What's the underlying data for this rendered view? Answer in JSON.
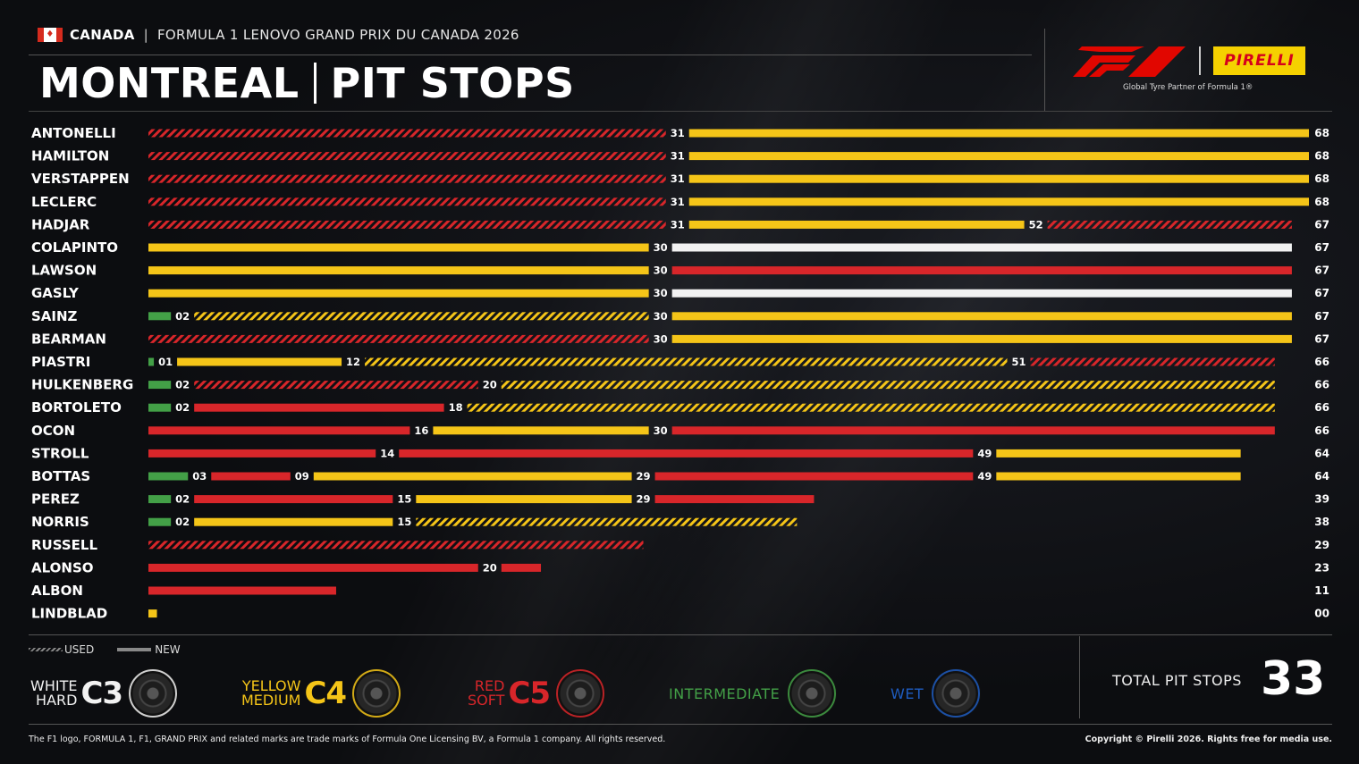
{
  "header": {
    "country": "CANADA",
    "race": "FORMULA 1 LENOVO GRAND PRIX DU CANADA 2026",
    "title_left": "MONTREAL",
    "title_right": "PIT STOPS",
    "pirelli": "PIRELLI",
    "partner": "Global Tyre Partner of Formula 1®"
  },
  "colors": {
    "hard": "#f2f2f2",
    "medium": "#f5c518",
    "soft": "#d8262a",
    "intermediate": "#43a047",
    "wet": "#1e5cbf"
  },
  "chart_data": {
    "type": "bar",
    "xlim": [
      0,
      68
    ],
    "drivers": [
      {
        "name": "ANTONELLI",
        "total": "68",
        "stints": [
          {
            "c": "soft",
            "u": true,
            "s": 0,
            "e": 31
          },
          {
            "c": "medium",
            "u": false,
            "s": 31,
            "e": 68
          }
        ],
        "labels": [
          "31"
        ]
      },
      {
        "name": "HAMILTON",
        "total": "68",
        "stints": [
          {
            "c": "soft",
            "u": true,
            "s": 0,
            "e": 31
          },
          {
            "c": "medium",
            "u": false,
            "s": 31,
            "e": 68
          }
        ],
        "labels": [
          "31"
        ]
      },
      {
        "name": "VERSTAPPEN",
        "total": "68",
        "stints": [
          {
            "c": "soft",
            "u": true,
            "s": 0,
            "e": 31
          },
          {
            "c": "medium",
            "u": false,
            "s": 31,
            "e": 68
          }
        ],
        "labels": [
          "31"
        ]
      },
      {
        "name": "LECLERC",
        "total": "68",
        "stints": [
          {
            "c": "soft",
            "u": true,
            "s": 0,
            "e": 31
          },
          {
            "c": "medium",
            "u": false,
            "s": 31,
            "e": 68
          }
        ],
        "labels": [
          "31"
        ]
      },
      {
        "name": "HADJAR",
        "total": "67",
        "stints": [
          {
            "c": "soft",
            "u": true,
            "s": 0,
            "e": 31
          },
          {
            "c": "medium",
            "u": false,
            "s": 31,
            "e": 52
          },
          {
            "c": "soft",
            "u": true,
            "s": 52,
            "e": 67
          }
        ],
        "labels": [
          "31",
          "52"
        ]
      },
      {
        "name": "COLAPINTO",
        "total": "67",
        "stints": [
          {
            "c": "medium",
            "u": false,
            "s": 0,
            "e": 30
          },
          {
            "c": "hard",
            "u": false,
            "s": 30,
            "e": 67
          }
        ],
        "labels": [
          "30"
        ]
      },
      {
        "name": "LAWSON",
        "total": "67",
        "stints": [
          {
            "c": "medium",
            "u": false,
            "s": 0,
            "e": 30
          },
          {
            "c": "soft",
            "u": false,
            "s": 30,
            "e": 67
          }
        ],
        "labels": [
          "30"
        ]
      },
      {
        "name": "GASLY",
        "total": "67",
        "stints": [
          {
            "c": "medium",
            "u": false,
            "s": 0,
            "e": 30
          },
          {
            "c": "hard",
            "u": false,
            "s": 30,
            "e": 67
          }
        ],
        "labels": [
          "30"
        ]
      },
      {
        "name": "SAINZ",
        "total": "67",
        "stints": [
          {
            "c": "intermediate",
            "u": false,
            "s": 0,
            "e": 2
          },
          {
            "c": "medium",
            "u": true,
            "s": 2,
            "e": 30
          },
          {
            "c": "medium",
            "u": false,
            "s": 30,
            "e": 67
          }
        ],
        "labels": [
          "02",
          "30"
        ]
      },
      {
        "name": "BEARMAN",
        "total": "67",
        "stints": [
          {
            "c": "soft",
            "u": true,
            "s": 0,
            "e": 30
          },
          {
            "c": "medium",
            "u": false,
            "s": 30,
            "e": 67
          }
        ],
        "labels": [
          "30"
        ]
      },
      {
        "name": "PIASTRI",
        "total": "66",
        "stints": [
          {
            "c": "intermediate",
            "u": false,
            "s": 0,
            "e": 1
          },
          {
            "c": "medium",
            "u": false,
            "s": 1,
            "e": 12
          },
          {
            "c": "medium",
            "u": true,
            "s": 12,
            "e": 51
          },
          {
            "c": "soft",
            "u": true,
            "s": 51,
            "e": 66
          }
        ],
        "labels": [
          "01",
          "12",
          "51"
        ]
      },
      {
        "name": "HULKENBERG",
        "total": "66",
        "stints": [
          {
            "c": "intermediate",
            "u": false,
            "s": 0,
            "e": 2
          },
          {
            "c": "soft",
            "u": true,
            "s": 2,
            "e": 20
          },
          {
            "c": "medium",
            "u": true,
            "s": 20,
            "e": 66
          }
        ],
        "labels": [
          "02",
          "20"
        ]
      },
      {
        "name": "BORTOLETO",
        "total": "66",
        "stints": [
          {
            "c": "intermediate",
            "u": false,
            "s": 0,
            "e": 2
          },
          {
            "c": "soft",
            "u": false,
            "s": 2,
            "e": 18
          },
          {
            "c": "medium",
            "u": true,
            "s": 18,
            "e": 66
          }
        ],
        "labels": [
          "02",
          "18"
        ]
      },
      {
        "name": "OCON",
        "total": "66",
        "stints": [
          {
            "c": "soft",
            "u": false,
            "s": 0,
            "e": 16
          },
          {
            "c": "medium",
            "u": false,
            "s": 16,
            "e": 30
          },
          {
            "c": "soft",
            "u": false,
            "s": 30,
            "e": 66
          }
        ],
        "labels": [
          "16",
          "30"
        ]
      },
      {
        "name": "STROLL",
        "total": "64",
        "stints": [
          {
            "c": "soft",
            "u": false,
            "s": 0,
            "e": 14
          },
          {
            "c": "soft",
            "u": false,
            "s": 14,
            "e": 49
          },
          {
            "c": "medium",
            "u": false,
            "s": 49,
            "e": 64
          }
        ],
        "labels": [
          "14",
          "49"
        ]
      },
      {
        "name": "BOTTAS",
        "total": "64",
        "stints": [
          {
            "c": "intermediate",
            "u": false,
            "s": 0,
            "e": 3
          },
          {
            "c": "soft",
            "u": false,
            "s": 3,
            "e": 9
          },
          {
            "c": "medium",
            "u": false,
            "s": 9,
            "e": 29
          },
          {
            "c": "soft",
            "u": false,
            "s": 29,
            "e": 49
          },
          {
            "c": "medium",
            "u": false,
            "s": 49,
            "e": 64
          }
        ],
        "labels": [
          "03",
          "09",
          "29",
          "49"
        ]
      },
      {
        "name": "PEREZ",
        "total": "39",
        "stints": [
          {
            "c": "intermediate",
            "u": false,
            "s": 0,
            "e": 2
          },
          {
            "c": "soft",
            "u": false,
            "s": 2,
            "e": 15
          },
          {
            "c": "medium",
            "u": false,
            "s": 15,
            "e": 29
          },
          {
            "c": "soft",
            "u": false,
            "s": 29,
            "e": 39
          }
        ],
        "labels": [
          "02",
          "15",
          "29"
        ]
      },
      {
        "name": "NORRIS",
        "total": "38",
        "stints": [
          {
            "c": "intermediate",
            "u": false,
            "s": 0,
            "e": 2
          },
          {
            "c": "medium",
            "u": false,
            "s": 2,
            "e": 15
          },
          {
            "c": "medium",
            "u": true,
            "s": 15,
            "e": 38
          }
        ],
        "labels": [
          "02",
          "15"
        ]
      },
      {
        "name": "RUSSELL",
        "total": "29",
        "stints": [
          {
            "c": "soft",
            "u": true,
            "s": 0,
            "e": 29
          }
        ],
        "labels": []
      },
      {
        "name": "ALONSO",
        "total": "23",
        "stints": [
          {
            "c": "soft",
            "u": false,
            "s": 0,
            "e": 20
          },
          {
            "c": "soft",
            "u": false,
            "s": 20,
            "e": 23
          }
        ],
        "labels": [
          "20"
        ]
      },
      {
        "name": "ALBON",
        "total": "11",
        "stints": [
          {
            "c": "soft",
            "u": false,
            "s": 0,
            "e": 11
          }
        ],
        "labels": []
      },
      {
        "name": "LINDBLAD",
        "total": "00",
        "stints": [
          {
            "c": "medium",
            "u": false,
            "s": 0,
            "e": 0.5
          }
        ],
        "labels": []
      }
    ]
  },
  "legend": {
    "used": "USED",
    "new": "NEW"
  },
  "compounds": {
    "hard": {
      "l1": "WHITE",
      "l2": "HARD",
      "code": "C3"
    },
    "medium": {
      "l1": "YELLOW",
      "l2": "MEDIUM",
      "code": "C4"
    },
    "soft": {
      "l1": "RED",
      "l2": "SOFT",
      "code": "C5"
    },
    "intermediate": {
      "label": "INTERMEDIATE"
    },
    "wet": {
      "label": "WET"
    }
  },
  "total": {
    "label": "TOTAL PIT STOPS",
    "value": "33"
  },
  "footer": {
    "left": "The F1 logo, FORMULA 1, F1, GRAND PRIX and related marks are trade marks of Formula One Licensing BV, a Formula 1 company. All rights reserved.",
    "right": "Copyright © Pirelli 2026. Rights free for media use."
  }
}
